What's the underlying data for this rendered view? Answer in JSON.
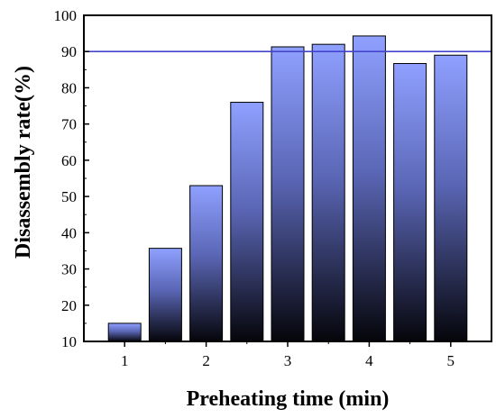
{
  "chart_data": {
    "type": "bar",
    "xlabel": "Preheating time (min)",
    "ylabel": "Disassembly rate(%)",
    "x_ticks": [
      "1",
      "2",
      "3",
      "4",
      "5"
    ],
    "y_ticks": [
      "10",
      "20",
      "30",
      "40",
      "50",
      "60",
      "70",
      "80",
      "90",
      "100"
    ],
    "xlim": [
      0.5,
      5.5
    ],
    "ylim": [
      10,
      100
    ],
    "x": [
      1.0,
      1.5,
      2.0,
      2.5,
      3.0,
      3.5,
      4.0,
      4.5,
      5.0
    ],
    "values": [
      15.0,
      35.7,
      53.0,
      76.0,
      91.3,
      92.0,
      94.3,
      86.7,
      89.0
    ],
    "reference_line": {
      "value": 90,
      "color": "#4444cc"
    },
    "grid": false,
    "colors": {
      "bar_top": "#8fa0ff",
      "bar_bottom": "#05050a",
      "bar_outline": "#000000",
      "axis": "#000000"
    }
  }
}
